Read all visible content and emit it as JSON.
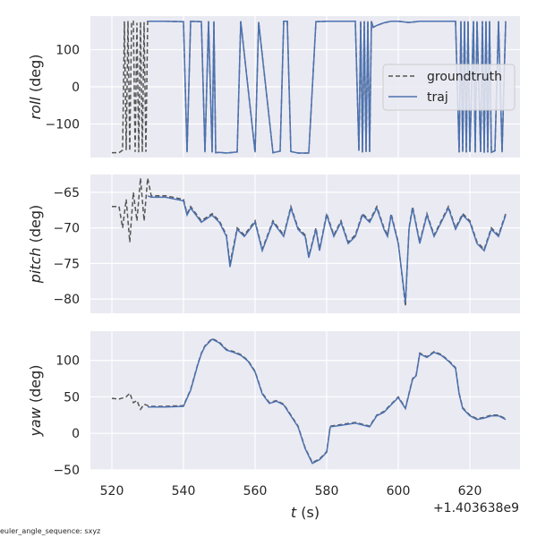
{
  "footnote": "euler_angle_sequence: sxyz",
  "x_offset_label": "+1.403638e9",
  "x_ticks": [
    520,
    540,
    560,
    580,
    600,
    620
  ],
  "xlabel_var": "t",
  "xlabel_unit": " (s)",
  "legend": [
    {
      "name": "groundtruth",
      "color": "#555555",
      "dashed": true
    },
    {
      "name": "traj",
      "color": "#4c72b0",
      "dashed": false
    }
  ],
  "chart_data": [
    {
      "type": "line",
      "ylabel_var": "roll",
      "ylabel_unit": " (deg)",
      "xlim": [
        514,
        634
      ],
      "ylim": [
        -190,
        190
      ],
      "yticks": [
        100,
        0,
        -100
      ],
      "grid": true,
      "legend_position": "right",
      "series": [
        {
          "name": "groundtruth",
          "x": [
            520,
            522,
            523,
            523.5,
            524,
            524.5,
            525,
            525.5,
            526,
            526.5,
            527,
            527.5,
            528,
            528.5,
            529,
            529.5,
            530,
            530.5,
            531,
            535,
            540,
            541,
            542,
            545,
            546,
            547,
            548,
            548.5,
            549,
            550,
            552,
            555,
            556,
            560,
            561,
            565,
            567,
            568,
            569,
            570,
            572,
            575,
            577,
            580,
            585,
            588,
            589,
            589.5,
            590,
            590.5,
            591,
            591.5,
            592,
            592.5,
            593,
            594,
            596,
            598,
            600,
            603,
            606,
            610,
            614,
            616,
            617,
            617.5,
            618,
            618.5,
            619,
            619.5,
            620,
            621,
            621.5,
            622,
            623,
            623.5,
            624,
            624.5,
            625,
            625.5,
            626,
            627,
            628,
            629,
            630
          ],
          "y": [
            -177,
            -177,
            -170,
            176,
            -170,
            177,
            -172,
            175,
            176,
            -175,
            172,
            -176,
            175,
            -176,
            174,
            -175,
            176,
            176,
            176,
            176,
            175,
            -176,
            176,
            175,
            -176,
            176,
            -176,
            176,
            -177,
            -176,
            -178,
            -175,
            176,
            -176,
            174,
            -177,
            -173,
            176,
            176,
            -174,
            -178,
            -178,
            175,
            176,
            176,
            176,
            -172,
            176,
            -176,
            176,
            -175,
            176,
            -175,
            176,
            160,
            165,
            172,
            176,
            176,
            173,
            176,
            176,
            176,
            176,
            -176,
            176,
            -175,
            176,
            -176,
            176,
            -175,
            176,
            -176,
            176,
            -175,
            176,
            -177,
            176,
            -176,
            176,
            -176,
            -172,
            176,
            -176,
            176
          ]
        },
        {
          "name": "traj",
          "x": [
            530,
            535,
            540,
            541,
            542,
            545,
            546,
            547,
            548,
            548.5,
            549,
            550,
            552,
            555,
            556,
            560,
            561,
            565,
            567,
            568,
            569,
            570,
            572,
            575,
            577,
            580,
            585,
            588,
            589,
            589.5,
            590,
            590.5,
            591,
            591.5,
            592,
            592.5,
            593,
            594,
            596,
            598,
            600,
            603,
            606,
            610,
            614,
            616,
            617,
            617.5,
            618,
            618.5,
            619,
            619.5,
            620,
            621,
            621.5,
            622,
            623,
            623.5,
            624,
            624.5,
            625,
            625.5,
            626,
            627,
            628,
            629,
            630
          ],
          "y": [
            176,
            176,
            175,
            -176,
            176,
            175,
            -176,
            176,
            -176,
            176,
            -177,
            -176,
            -178,
            -175,
            176,
            -176,
            174,
            -177,
            -173,
            176,
            176,
            -174,
            -178,
            -178,
            175,
            176,
            176,
            176,
            -172,
            176,
            -176,
            176,
            -175,
            176,
            -175,
            176,
            160,
            165,
            172,
            176,
            176,
            173,
            176,
            176,
            176,
            176,
            -176,
            176,
            -175,
            176,
            -176,
            176,
            -175,
            176,
            -176,
            176,
            -175,
            176,
            -177,
            176,
            -176,
            176,
            -176,
            -172,
            176,
            -176,
            176
          ]
        }
      ]
    },
    {
      "type": "line",
      "ylabel_var": "pitch",
      "ylabel_unit": " (deg)",
      "xlim": [
        514,
        634
      ],
      "ylim": [
        -82,
        -62.5
      ],
      "yticks": [
        -65,
        -70,
        -75,
        -80
      ],
      "grid": true,
      "series": [
        {
          "name": "groundtruth",
          "x": [
            520,
            522,
            523,
            524,
            525,
            526,
            527,
            528,
            529,
            530,
            531,
            535,
            540,
            541,
            542,
            545,
            548,
            550,
            552,
            553,
            555,
            557,
            560,
            562,
            565,
            568,
            570,
            572,
            574,
            575,
            577,
            578,
            580,
            582,
            584,
            586,
            588,
            590,
            592,
            594,
            596,
            597,
            598,
            600,
            602,
            603,
            604,
            606,
            608,
            610,
            612,
            614,
            616,
            618,
            620,
            622,
            624,
            626,
            628,
            630
          ],
          "y": [
            -67,
            -67,
            -70,
            -66,
            -72,
            -65,
            -69,
            -63,
            -69,
            -63,
            -65.5,
            -65.5,
            -66,
            -68,
            -67,
            -69,
            -68,
            -69,
            -71,
            -75,
            -70,
            -71,
            -69,
            -73,
            -69,
            -71,
            -67,
            -70,
            -71,
            -74,
            -70,
            -73,
            -68,
            -71,
            -69,
            -72,
            -71,
            -68,
            -69,
            -67,
            -70,
            -71,
            -68,
            -72,
            -81,
            -70,
            -67,
            -72,
            -68,
            -71,
            -69,
            -67,
            -70,
            -68,
            -69,
            -72,
            -73,
            -70,
            -71,
            -68
          ]
        },
        {
          "name": "traj",
          "x": [
            530,
            531,
            535,
            540,
            541,
            542,
            545,
            548,
            550,
            552,
            553,
            555,
            557,
            560,
            562,
            565,
            568,
            570,
            572,
            574,
            575,
            577,
            578,
            580,
            582,
            584,
            586,
            588,
            590,
            592,
            594,
            596,
            597,
            598,
            600,
            602,
            603,
            604,
            606,
            608,
            610,
            612,
            614,
            616,
            618,
            620,
            622,
            624,
            626,
            628,
            630
          ],
          "y": [
            -65.5,
            -65.7,
            -65.7,
            -66.2,
            -68.2,
            -67.2,
            -69.2,
            -68.2,
            -69.2,
            -71.2,
            -75.5,
            -70.2,
            -71.2,
            -69.2,
            -73.2,
            -69.2,
            -71.2,
            -67.2,
            -70.2,
            -71.2,
            -74.2,
            -70.2,
            -73.2,
            -68.2,
            -71.2,
            -69.2,
            -72.2,
            -71.2,
            -68.2,
            -69.2,
            -67.2,
            -70.2,
            -71.2,
            -68.2,
            -72.2,
            -80.5,
            -70.2,
            -67.2,
            -72.2,
            -68.2,
            -71.2,
            -69.2,
            -67.2,
            -70.2,
            -68.2,
            -69.2,
            -72.2,
            -73.2,
            -70.2,
            -71.2,
            -68.2
          ]
        }
      ]
    },
    {
      "type": "line",
      "ylabel_var": "yaw",
      "ylabel_unit": " (deg)",
      "xlim": [
        514,
        634
      ],
      "ylim": [
        -50,
        140
      ],
      "yticks": [
        100,
        50,
        0,
        -50
      ],
      "grid": true,
      "series": [
        {
          "name": "groundtruth",
          "x": [
            520,
            522,
            524,
            525,
            526,
            527,
            528,
            529,
            530,
            531,
            535,
            540,
            542,
            544,
            545,
            546,
            548,
            550,
            552,
            554,
            556,
            558,
            560,
            562,
            564,
            566,
            568,
            570,
            572,
            574,
            575,
            576,
            578,
            580,
            581,
            584,
            588,
            592,
            594,
            596,
            598,
            600,
            602,
            604,
            605,
            606,
            608,
            610,
            612,
            614,
            616,
            617,
            618,
            620,
            622,
            624,
            626,
            628,
            630
          ],
          "y": [
            48,
            47,
            50,
            55,
            42,
            45,
            33,
            40,
            38,
            37,
            37,
            38,
            60,
            95,
            110,
            120,
            130,
            125,
            115,
            112,
            108,
            100,
            85,
            55,
            42,
            45,
            40,
            25,
            10,
            -20,
            -30,
            -40,
            -35,
            -25,
            10,
            12,
            15,
            10,
            25,
            30,
            40,
            50,
            35,
            75,
            80,
            110,
            105,
            112,
            108,
            100,
            90,
            55,
            35,
            25,
            20,
            22,
            25,
            25,
            20
          ]
        },
        {
          "name": "traj",
          "x": [
            530,
            531,
            535,
            540,
            542,
            544,
            545,
            546,
            548,
            550,
            552,
            554,
            556,
            558,
            560,
            562,
            564,
            566,
            568,
            570,
            572,
            574,
            575,
            576,
            578,
            580,
            581,
            584,
            588,
            592,
            594,
            596,
            598,
            600,
            602,
            604,
            605,
            606,
            608,
            610,
            612,
            614,
            616,
            617,
            618,
            620,
            622,
            624,
            626,
            628,
            630
          ],
          "y": [
            36,
            36,
            36,
            37,
            59,
            94,
            109,
            119,
            129,
            124,
            114,
            111,
            107,
            99,
            84,
            54,
            41,
            44,
            39,
            24,
            9,
            -21,
            -31,
            -41,
            -36,
            -26,
            9,
            11,
            14,
            9,
            24,
            29,
            39,
            49,
            34,
            74,
            79,
            109,
            104,
            111,
            107,
            99,
            89,
            54,
            34,
            24,
            19,
            21,
            24,
            24,
            19
          ]
        }
      ]
    }
  ]
}
